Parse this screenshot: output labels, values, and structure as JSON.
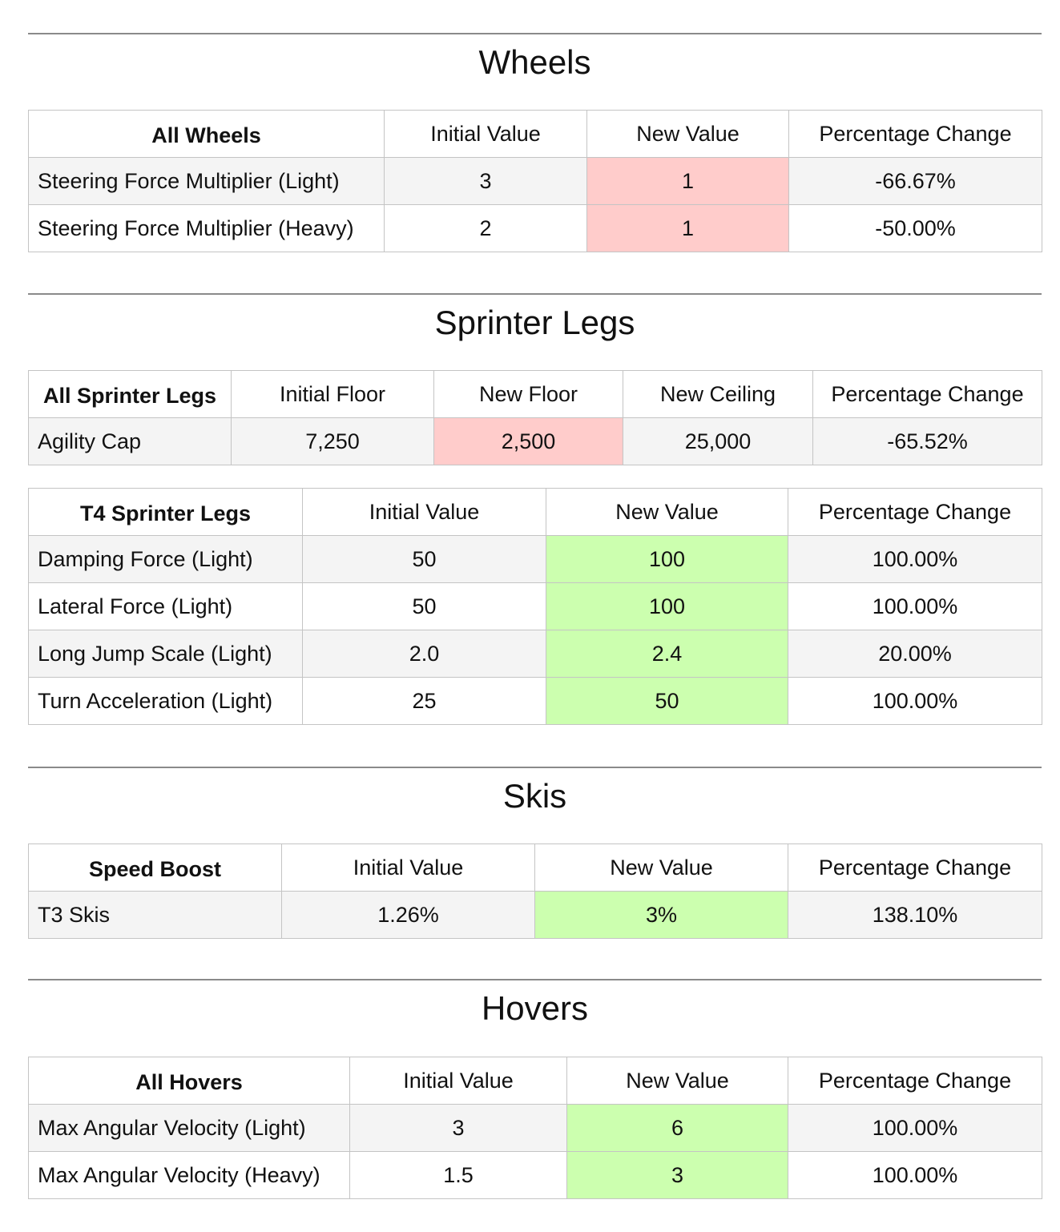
{
  "colors": {
    "decrease_highlight": "#ffcccb",
    "increase_highlight": "#ccffaf",
    "striped_row": "#f4f4f4",
    "rule": "#8a8a8a"
  },
  "wheels": {
    "title": "Wheels",
    "table": {
      "headers": [
        "All Wheels",
        "Initial Value",
        "New Value",
        "Percentage Change"
      ],
      "rows": [
        [
          "Steering Force Multiplier (Light)",
          "3",
          "1",
          "-66.67%"
        ],
        [
          "Steering Force Multiplier (Heavy)",
          "2",
          "1",
          "-50.00%"
        ]
      ]
    }
  },
  "sprinter_legs": {
    "title": "Sprinter Legs",
    "all_table": {
      "headers": [
        "All Sprinter Legs",
        "Initial Floor",
        "New Floor",
        "New Ceiling",
        "Percentage Change"
      ],
      "rows": [
        [
          "Agility Cap",
          "7,250",
          "2,500",
          "25,000",
          "-65.52%"
        ]
      ]
    },
    "t4_table": {
      "headers": [
        "T4 Sprinter Legs",
        "Initial Value",
        "New Value",
        "Percentage Change"
      ],
      "rows": [
        [
          "Damping Force (Light)",
          "50",
          "100",
          "100.00%"
        ],
        [
          "Lateral Force (Light)",
          "50",
          "100",
          "100.00%"
        ],
        [
          "Long Jump Scale (Light)",
          "2.0",
          "2.4",
          "20.00%"
        ],
        [
          "Turn Acceleration (Light)",
          "25",
          "50",
          "100.00%"
        ]
      ]
    }
  },
  "skis": {
    "title": "Skis",
    "table": {
      "headers": [
        "Speed Boost",
        "Initial Value",
        "New Value",
        "Percentage Change"
      ],
      "rows": [
        [
          "T3 Skis",
          "1.26%",
          "3%",
          "138.10%"
        ]
      ]
    }
  },
  "hovers": {
    "title": "Hovers",
    "table": {
      "headers": [
        "All Hovers",
        "Initial Value",
        "New Value",
        "Percentage Change"
      ],
      "rows": [
        [
          "Max Angular Velocity (Light)",
          "3",
          "6",
          "100.00%"
        ],
        [
          "Max Angular Velocity (Heavy)",
          "1.5",
          "3",
          "100.00%"
        ]
      ]
    }
  }
}
